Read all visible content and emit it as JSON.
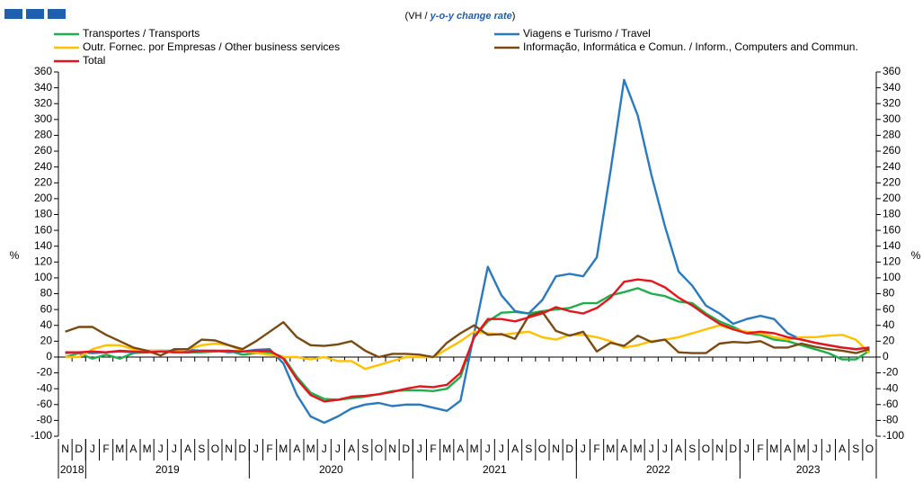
{
  "chart_data": {
    "type": "line",
    "subtitle_parts": [
      "(VH / ",
      "y-o-y change rate",
      ")"
    ],
    "y_label": "%",
    "categories": [
      "N",
      "D",
      "J",
      "F",
      "M",
      "A",
      "M",
      "J",
      "J",
      "A",
      "S",
      "O",
      "N",
      "D",
      "J",
      "F",
      "M",
      "A",
      "M",
      "J",
      "J",
      "A",
      "S",
      "O",
      "N",
      "D",
      "J",
      "F",
      "M",
      "A",
      "M",
      "J",
      "J",
      "A",
      "S",
      "O",
      "N",
      "D",
      "J",
      "F",
      "M",
      "A",
      "M",
      "J",
      "J",
      "A",
      "S",
      "O",
      "N",
      "D",
      "J",
      "F",
      "M",
      "A",
      "M",
      "J",
      "J",
      "A",
      "S",
      "O"
    ],
    "years": [
      "2018",
      "2019",
      "2020",
      "2021",
      "2022",
      "2023"
    ],
    "ylim": [
      -100,
      360
    ],
    "yticks": [
      -100,
      -80,
      -60,
      -40,
      -20,
      0,
      20,
      40,
      60,
      80,
      100,
      120,
      140,
      160,
      180,
      200,
      220,
      240,
      260,
      280,
      300,
      320,
      340,
      360
    ],
    "series": [
      {
        "name": "Transportes / Transports",
        "color": "#1fae4b",
        "values": [
          0,
          5,
          -2,
          3,
          -2,
          5,
          6,
          8,
          8,
          6,
          6,
          7,
          8,
          3,
          5,
          6,
          0,
          -25,
          -45,
          -53,
          -54,
          -52,
          -50,
          -47,
          -43,
          -42,
          -42,
          -43,
          -40,
          -25,
          25,
          45,
          56,
          57,
          55,
          58,
          60,
          62,
          68,
          68,
          78,
          82,
          87,
          80,
          77,
          70,
          68,
          55,
          45,
          38,
          30,
          28,
          22,
          20,
          15,
          10,
          5,
          -3,
          -3,
          8
        ]
      },
      {
        "name": "Viagens e Turismo / Travel",
        "color": "#2a7ac0",
        "values": [
          5,
          6,
          5,
          6,
          7,
          6,
          8,
          8,
          7,
          9,
          8,
          8,
          6,
          7,
          9,
          10,
          -8,
          -48,
          -75,
          -83,
          -75,
          -65,
          -60,
          -58,
          -62,
          -60,
          -60,
          -64,
          -68,
          -55,
          30,
          114,
          78,
          58,
          55,
          72,
          102,
          105,
          102,
          126,
          235,
          350,
          305,
          230,
          165,
          108,
          90,
          65,
          55,
          42,
          48,
          52,
          48,
          30,
          22,
          18,
          15,
          12,
          10,
          12
        ]
      },
      {
        "name": "Outr. Fornec. por Empresas / Other business services",
        "color": "#ffc000",
        "values": [
          0,
          0,
          10,
          15,
          15,
          10,
          8,
          8,
          6,
          10,
          15,
          17,
          15,
          8,
          5,
          3,
          0,
          0,
          -3,
          0,
          -5,
          -5,
          -15,
          -10,
          -5,
          0,
          0,
          0,
          10,
          20,
          32,
          30,
          28,
          30,
          32,
          25,
          22,
          28,
          28,
          25,
          20,
          12,
          15,
          20,
          22,
          25,
          30,
          35,
          40,
          35,
          32,
          30,
          25,
          22,
          25,
          25,
          27,
          28,
          22,
          5
        ]
      },
      {
        "name": "Informação, Informática e Comun. / Inform., Computers and Commun.",
        "color": "#7b4a12",
        "values": [
          32,
          38,
          38,
          28,
          20,
          12,
          8,
          2,
          10,
          10,
          22,
          21,
          15,
          10,
          20,
          32,
          44,
          25,
          15,
          14,
          16,
          20,
          8,
          0,
          4,
          4,
          3,
          0,
          18,
          30,
          40,
          28,
          29,
          23,
          52,
          57,
          33,
          27,
          32,
          7,
          18,
          14,
          27,
          19,
          22,
          6,
          5,
          5,
          17,
          19,
          18,
          20,
          12,
          12,
          17,
          13,
          10,
          8,
          5,
          10
        ]
      },
      {
        "name": "Total",
        "color": "#e8141c",
        "values": [
          6,
          6,
          7,
          6,
          8,
          7,
          6,
          7,
          6,
          6,
          8,
          8,
          8,
          7,
          8,
          8,
          -2,
          -28,
          -48,
          -56,
          -54,
          -50,
          -49,
          -47,
          -44,
          -40,
          -37,
          -38,
          -35,
          -20,
          25,
          48,
          48,
          45,
          50,
          55,
          63,
          58,
          55,
          62,
          75,
          95,
          98,
          96,
          88,
          75,
          65,
          53,
          42,
          35,
          30,
          32,
          30,
          25,
          22,
          18,
          15,
          12,
          10,
          12
        ]
      }
    ]
  }
}
